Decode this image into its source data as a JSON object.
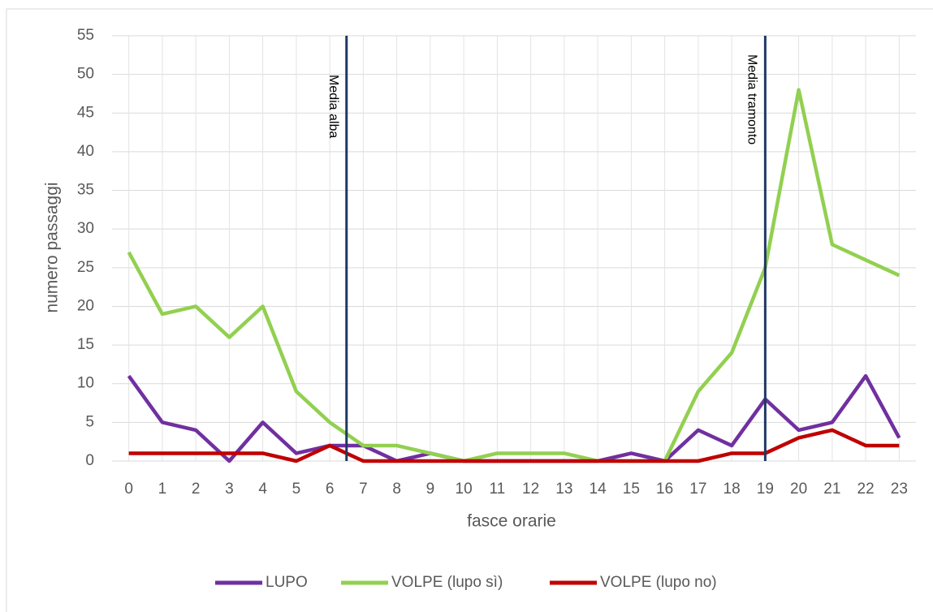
{
  "chart_data": {
    "type": "line",
    "categories": [
      "0",
      "1",
      "2",
      "3",
      "4",
      "5",
      "6",
      "7",
      "8",
      "9",
      "10",
      "11",
      "12",
      "13",
      "14",
      "15",
      "16",
      "17",
      "18",
      "19",
      "20",
      "21",
      "22",
      "23"
    ],
    "series": [
      {
        "name": "LUPO",
        "color": "#7030a0",
        "values": [
          11,
          5,
          4,
          0,
          5,
          1,
          2,
          2,
          0,
          1,
          0,
          0,
          0,
          0,
          0,
          1,
          0,
          4,
          2,
          8,
          4,
          5,
          11,
          3
        ]
      },
      {
        "name": "VOLPE (lupo sì)",
        "color": "#92d050",
        "values": [
          27,
          19,
          20,
          16,
          20,
          9,
          5,
          2,
          2,
          1,
          0,
          1,
          1,
          1,
          0,
          0,
          0,
          9,
          14,
          25,
          48,
          28,
          26,
          24
        ]
      },
      {
        "name": "VOLPE (lupo no)",
        "color": "#c00000",
        "values": [
          1,
          1,
          1,
          1,
          1,
          0,
          2,
          0,
          0,
          0,
          0,
          0,
          0,
          0,
          0,
          0,
          0,
          0,
          1,
          1,
          3,
          4,
          2,
          2
        ]
      }
    ],
    "xlabel": "fasce orarie",
    "ylabel": "numero passaggi",
    "ylim": [
      0,
      55
    ],
    "yticks": [
      0,
      5,
      10,
      15,
      20,
      25,
      30,
      35,
      40,
      45,
      50,
      55
    ],
    "grid": true,
    "annotations": [
      {
        "label": "Media alba",
        "x": 6.5,
        "color": "#1f3864"
      },
      {
        "label": "Media tramonto",
        "x": 19,
        "color": "#1f3864"
      }
    ],
    "legend": "bottom"
  }
}
